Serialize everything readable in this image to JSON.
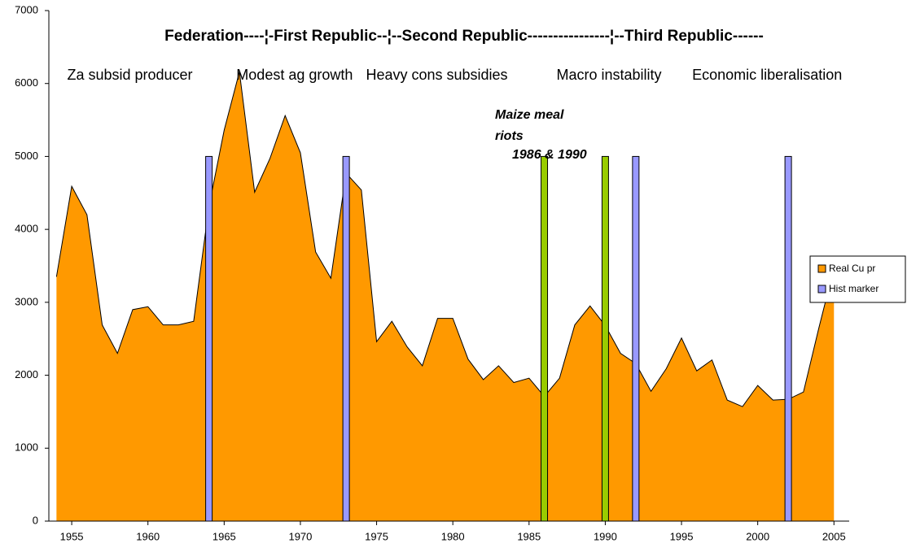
{
  "chart_data": {
    "type": "area",
    "headline": "Federation----¦-First Republic--¦--Second Republic----------------¦--Third Republic------",
    "period_labels": [
      {
        "text": "Za subsid producer",
        "x": 1954.7
      },
      {
        "text": "Modest ag growth",
        "x": 1965.8
      },
      {
        "text": "Heavy cons subsidies",
        "x": 1974.3
      },
      {
        "text": "Macro instability",
        "x": 1986.8
      },
      {
        "text": "Economic liberalisation",
        "x": 1995.7
      }
    ],
    "annotation": [
      "Maize meal",
      "riots",
      "1986 & 1990"
    ],
    "x": [
      1954,
      1955,
      1956,
      1957,
      1958,
      1959,
      1960,
      1961,
      1962,
      1963,
      1964,
      1965,
      1966,
      1967,
      1968,
      1969,
      1970,
      1971,
      1972,
      1973,
      1974,
      1975,
      1976,
      1977,
      1978,
      1979,
      1980,
      1981,
      1982,
      1983,
      1984,
      1985,
      1986,
      1987,
      1988,
      1989,
      1990,
      1991,
      1992,
      1993,
      1994,
      1995,
      1996,
      1997,
      1998,
      1999,
      2000,
      2001,
      2002,
      2003,
      2004,
      2005
    ],
    "series": [
      {
        "name": "Real Cu pr",
        "color": "#ff9900",
        "values": [
          3350,
          4590,
          4200,
          2690,
          2300,
          2900,
          2940,
          2690,
          2690,
          2740,
          4310,
          5360,
          6160,
          4510,
          4970,
          5560,
          5050,
          3690,
          3330,
          4770,
          4540,
          2460,
          2740,
          2390,
          2130,
          2780,
          2780,
          2220,
          1940,
          2130,
          1900,
          1960,
          1710,
          1960,
          2690,
          2950,
          2680,
          2300,
          2160,
          1780,
          2090,
          2510,
          2060,
          2210,
          1660,
          1570,
          1860,
          1660,
          1670,
          1770,
          2640,
          3470
        ]
      },
      {
        "name": "Hist marker",
        "color": "#9999ff",
        "x": [
          1964,
          1973,
          1986,
          1990,
          1992,
          2002
        ],
        "values": [
          5000,
          5000,
          5000,
          5000,
          5000,
          5000
        ],
        "colors": [
          "#9999ff",
          "#9999ff",
          "#99cc00",
          "#99cc00",
          "#9999ff",
          "#9999ff"
        ]
      }
    ],
    "xlim": [
      1953.5,
      2006
    ],
    "xticks": [
      1955,
      1960,
      1965,
      1970,
      1975,
      1980,
      1985,
      1990,
      1995,
      2000,
      2005
    ],
    "ylim": [
      0,
      7000
    ],
    "yticks": [
      0,
      1000,
      2000,
      3000,
      4000,
      5000,
      6000,
      7000
    ],
    "legend": "right"
  }
}
